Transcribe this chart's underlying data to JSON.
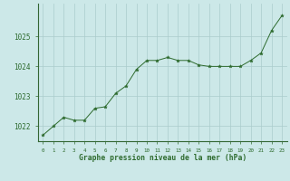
{
  "x": [
    0,
    1,
    2,
    3,
    4,
    5,
    6,
    7,
    8,
    9,
    10,
    11,
    12,
    13,
    14,
    15,
    16,
    17,
    18,
    19,
    20,
    21,
    22,
    23
  ],
  "y": [
    1021.7,
    1022.0,
    1022.3,
    1022.2,
    1022.2,
    1022.6,
    1022.65,
    1023.1,
    1023.35,
    1023.9,
    1024.2,
    1024.2,
    1024.3,
    1024.2,
    1024.2,
    1024.05,
    1024.0,
    1024.0,
    1024.0,
    1024.0,
    1024.2,
    1024.45,
    1025.2,
    1025.7
  ],
  "line_color": "#2d6a2d",
  "marker": "*",
  "marker_color": "#2d6a2d",
  "bg_color": "#cce8e8",
  "grid_color": "#aacccc",
  "xlabel": "Graphe pression niveau de la mer (hPa)",
  "xlabel_color": "#2d6a2d",
  "tick_color": "#2d6a2d",
  "ylim": [
    1021.5,
    1026.1
  ],
  "yticks": [
    1022,
    1023,
    1024,
    1025
  ],
  "xlim": [
    -0.5,
    23.5
  ],
  "figsize": [
    3.2,
    2.0
  ],
  "dpi": 100
}
